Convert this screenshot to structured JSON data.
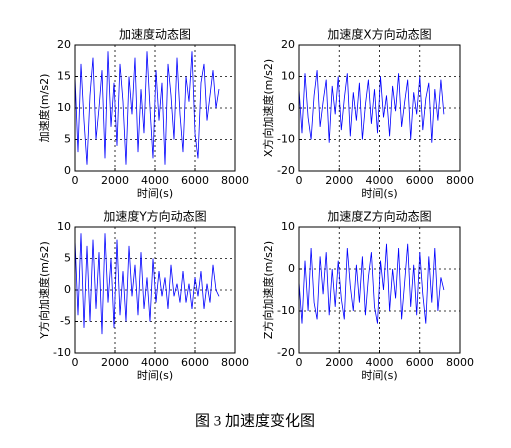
{
  "chart_data": [
    {
      "type": "line",
      "title": "加速度动态图",
      "xlabel": "时间(s)",
      "ylabel": "加速度(m/s2)",
      "color": "#0000ff",
      "grid": true,
      "xlim": [
        0,
        8000
      ],
      "xticks": [
        0,
        2000,
        4000,
        6000,
        8000
      ],
      "ylim": [
        0,
        20
      ],
      "yticks": [
        0,
        5,
        10,
        15,
        20
      ],
      "x": [
        0,
        150,
        300,
        450,
        600,
        750,
        900,
        1050,
        1200,
        1350,
        1500,
        1650,
        1800,
        1950,
        2100,
        2250,
        2400,
        2550,
        2700,
        2850,
        3000,
        3150,
        3300,
        3450,
        3600,
        3750,
        3900,
        4050,
        4200,
        4350,
        4500,
        4650,
        4800,
        4950,
        5100,
        5250,
        5400,
        5550,
        5700,
        5850,
        6000,
        6150,
        6300,
        6450,
        6600,
        6750,
        6900,
        7050,
        7200
      ],
      "values": [
        15,
        3,
        17,
        8,
        1,
        12,
        18,
        5,
        10,
        16,
        2,
        19,
        7,
        14,
        4,
        17,
        11,
        1,
        15,
        9,
        18,
        3,
        13,
        6,
        19,
        10,
        2,
        16,
        8,
        14,
        1,
        17,
        12,
        5,
        18,
        9,
        3,
        15,
        11,
        19,
        6,
        2,
        14,
        17,
        8,
        12,
        16,
        10,
        13
      ]
    },
    {
      "type": "line",
      "title": "加速度X方向动态图",
      "xlabel": "时间(s)",
      "ylabel": "X方向加速度(m/s2)",
      "color": "#0000ff",
      "grid": true,
      "xlim": [
        0,
        8000
      ],
      "xticks": [
        0,
        2000,
        4000,
        6000,
        8000
      ],
      "ylim": [
        -20,
        20
      ],
      "yticks": [
        -20,
        -10,
        0,
        10,
        20
      ],
      "x": [
        0,
        150,
        300,
        450,
        600,
        750,
        900,
        1050,
        1200,
        1350,
        1500,
        1650,
        1800,
        1950,
        2100,
        2250,
        2400,
        2550,
        2700,
        2850,
        3000,
        3150,
        3300,
        3450,
        3600,
        3750,
        3900,
        4050,
        4200,
        4350,
        4500,
        4650,
        4800,
        4950,
        5100,
        5250,
        5400,
        5550,
        5700,
        5850,
        6000,
        6150,
        6300,
        6450,
        6600,
        6750,
        6900,
        7050,
        7200
      ],
      "values": [
        6,
        -8,
        11,
        -3,
        -10,
        4,
        12,
        -6,
        2,
        9,
        -11,
        7,
        -2,
        10,
        -7,
        3,
        11,
        -9,
        5,
        -4,
        8,
        -10,
        1,
        9,
        -5,
        6,
        -8,
        10,
        -3,
        4,
        -9,
        7,
        -1,
        11,
        -6,
        2,
        9,
        -10,
        5,
        -2,
        10,
        -7,
        3,
        8,
        -11,
        6,
        -4,
        9,
        -2
      ]
    },
    {
      "type": "line",
      "title": "加速度Y方向动态图",
      "xlabel": "时间(s)",
      "ylabel": "Y方向加速度(m/s2)",
      "color": "#0000ff",
      "grid": true,
      "xlim": [
        0,
        8000
      ],
      "xticks": [
        0,
        2000,
        4000,
        6000,
        8000
      ],
      "ylim": [
        -10,
        10
      ],
      "yticks": [
        -10,
        -5,
        0,
        5,
        10
      ],
      "x": [
        0,
        150,
        300,
        450,
        600,
        750,
        900,
        1050,
        1200,
        1350,
        1500,
        1650,
        1800,
        1950,
        2100,
        2250,
        2400,
        2550,
        2700,
        2850,
        3000,
        3150,
        3300,
        3450,
        3600,
        3750,
        3900,
        4050,
        4200,
        4350,
        4500,
        4650,
        4800,
        4950,
        5100,
        5250,
        5400,
        5550,
        5700,
        5850,
        6000,
        6150,
        6300,
        6450,
        6600,
        6750,
        6900,
        7050,
        7200
      ],
      "values": [
        8,
        -4,
        9,
        -6,
        7,
        -5,
        8,
        -3,
        6,
        -7,
        9,
        -2,
        5,
        -6,
        8,
        -4,
        3,
        -5,
        7,
        -1,
        4,
        -4,
        6,
        -3,
        2,
        -5,
        5,
        -2,
        3,
        -1,
        2,
        -3,
        4,
        -1,
        1,
        -2,
        3,
        -2,
        1,
        -3,
        2,
        -1,
        3,
        -3,
        1,
        -2,
        4,
        0,
        -1
      ]
    },
    {
      "type": "line",
      "title": "加速度Z方向动态图",
      "xlabel": "时间(s)",
      "ylabel": "Z方向加速度(m/s2)",
      "color": "#0000ff",
      "grid": true,
      "xlim": [
        0,
        8000
      ],
      "xticks": [
        0,
        2000,
        4000,
        6000,
        8000
      ],
      "ylim": [
        -20,
        10
      ],
      "yticks": [
        -20,
        -10,
        0,
        10
      ],
      "x": [
        0,
        150,
        300,
        450,
        600,
        750,
        900,
        1050,
        1200,
        1350,
        1500,
        1650,
        1800,
        1950,
        2100,
        2250,
        2400,
        2550,
        2700,
        2850,
        3000,
        3150,
        3300,
        3450,
        3600,
        3750,
        3900,
        4050,
        4200,
        4350,
        4500,
        4650,
        4800,
        4950,
        5100,
        5250,
        5400,
        5550,
        5700,
        5850,
        6000,
        6150,
        6300,
        6450,
        6600,
        6750,
        6900,
        7050,
        7200
      ],
      "values": [
        -3,
        -13,
        2,
        -10,
        5,
        -8,
        -12,
        3,
        -6,
        4,
        -11,
        0,
        -9,
        2,
        -7,
        -12,
        5,
        -4,
        -10,
        1,
        -8,
        3,
        -11,
        -2,
        4,
        -9,
        -13,
        2,
        -5,
        6,
        -10,
        0,
        -7,
        5,
        -12,
        -3,
        6,
        -9,
        1,
        -11,
        4,
        -6,
        -13,
        3,
        -8,
        5,
        -10,
        -2,
        -5
      ]
    }
  ],
  "caption": "图 3  加速度变化图"
}
